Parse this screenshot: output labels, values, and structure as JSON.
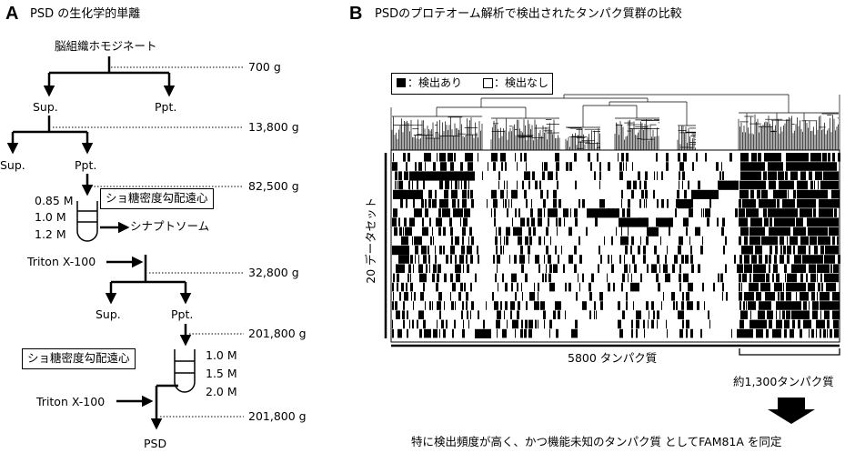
{
  "panel_a": {
    "letter": "A",
    "title": "PSD の生化学的単離",
    "start": "脳組織ホモジネート",
    "g1": "700 g",
    "sup1": "Sup.",
    "ppt1": "Ppt.",
    "g2": "13,800 g",
    "sup2": "Sup.",
    "ppt2": "Ppt.",
    "g3": "82,500 g",
    "grad1_label": "ショ糖密度勾配遠心",
    "grad1_conc": [
      "0.85 M",
      "1.0 M",
      "1.2 M"
    ],
    "synaptosome": "シナプトソーム",
    "triton1": "Triton X-100",
    "g4": "32,800 g",
    "sup3": "Sup.",
    "ppt3": "Ppt.",
    "g5": "201,800 g",
    "grad2_label": "ショ糖密度勾配遠心",
    "grad2_conc": [
      "1.0 M",
      "1.5 M",
      "2.0 M"
    ],
    "triton2": "Triton X-100",
    "g6": "201,800 g",
    "psd": "PSD"
  },
  "panel_b": {
    "letter": "B",
    "title": "PSDのプロテオーム解析で検出されたタンパク質群の比較",
    "legend": {
      "detected": "：検出あり",
      "not_detected": "：検出なし"
    },
    "ylabel": "20 データセット",
    "xlabel": "5800 タンパク質",
    "cluster_label": "約1,300タンパク質",
    "conclusion": "特に検出頻度が高く、かつ機能未知のタンパク質 としてFAM81A を同定"
  }
}
